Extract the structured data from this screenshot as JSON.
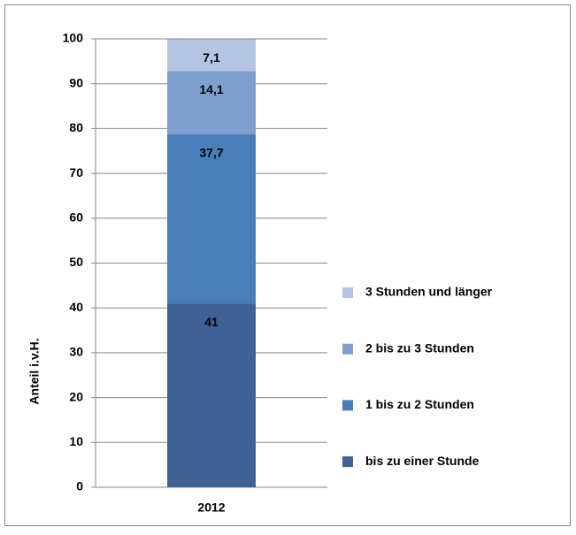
{
  "chart_data": {
    "type": "stacked_bar",
    "categories": [
      "2012"
    ],
    "y_label": "Anteil i.v.H.",
    "series": [
      {
        "name": "bis zu einer Stunde",
        "color": "#3f6196",
        "values": [
          41
        ],
        "value_labels": [
          "41"
        ]
      },
      {
        "name": "1 bis zu 2 Stunden",
        "color": "#4a7ebb",
        "values": [
          37.7
        ],
        "value_labels": [
          "37,7"
        ]
      },
      {
        "name": "2 bis zu 3 Stunden",
        "color": "#7f9fcf",
        "values": [
          14.1
        ],
        "value_labels": [
          "14,1"
        ]
      },
      {
        "name": "3 Stunden  und länger",
        "color": "#b4c5e3",
        "values": [
          7.1
        ],
        "value_labels": [
          "7,1"
        ]
      }
    ],
    "ylim": [
      0,
      100
    ],
    "yticks": [
      0,
      10,
      20,
      30,
      40,
      50,
      60,
      70,
      80,
      90,
      100
    ],
    "grid": true,
    "legend": "right"
  }
}
